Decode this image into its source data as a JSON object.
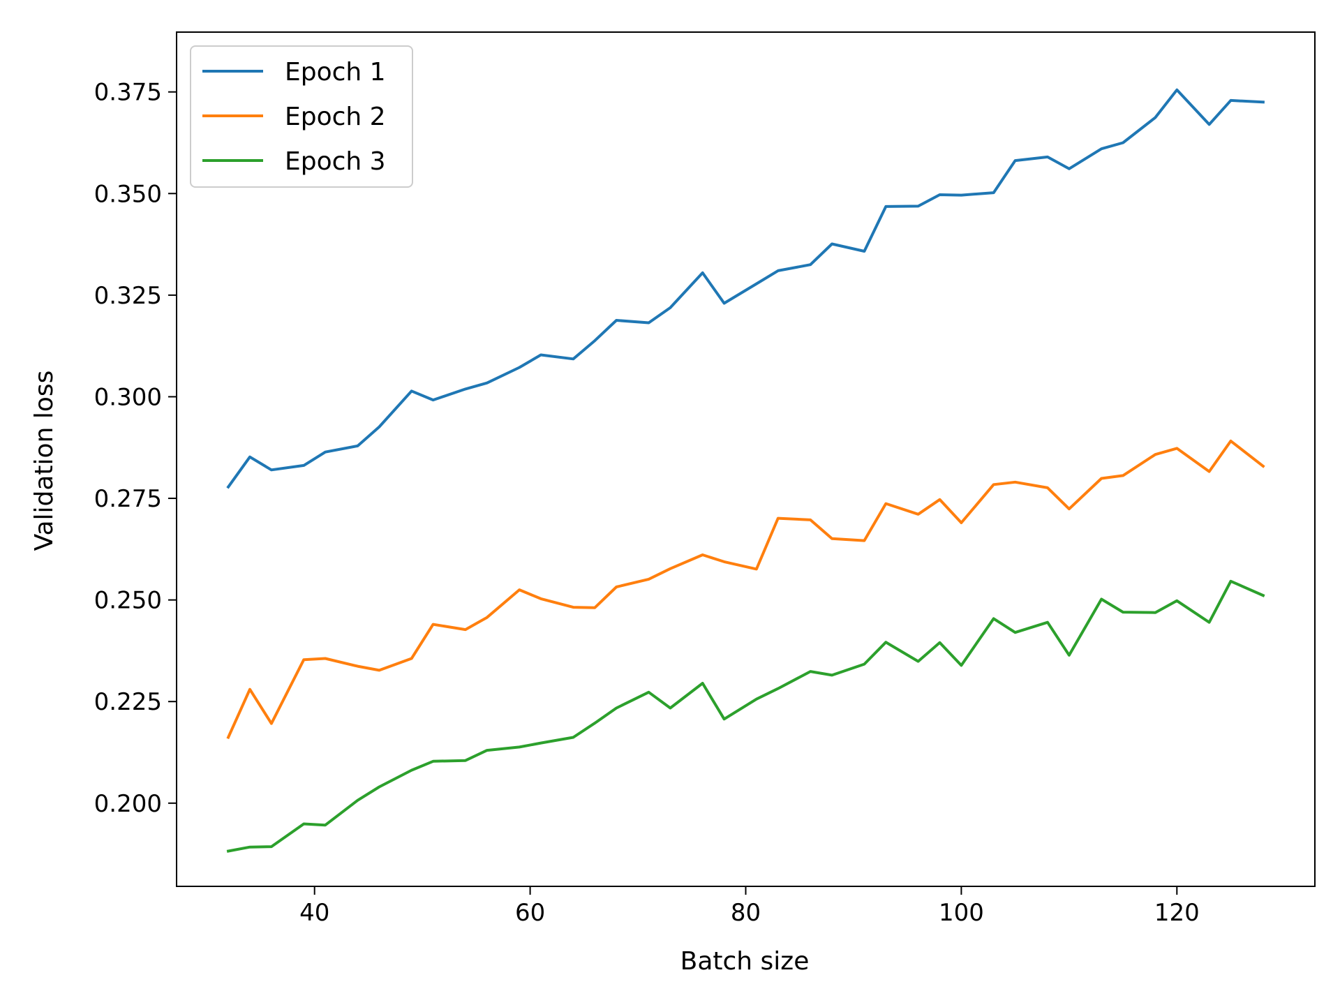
{
  "chart_data": {
    "type": "line",
    "title": "",
    "xlabel": "Batch size",
    "ylabel": "Validation loss",
    "xlim": [
      27.2,
      132.8
    ],
    "ylim": [
      0.17953,
      0.38972
    ],
    "xticks": [
      40,
      60,
      80,
      100,
      120
    ],
    "xtick_labels": [
      "40",
      "60",
      "80",
      "100",
      "120"
    ],
    "yticks": [
      0.2,
      0.225,
      0.25,
      0.275,
      0.3,
      0.325,
      0.35,
      0.375
    ],
    "ytick_labels": [
      "0.200",
      "0.225",
      "0.250",
      "0.275",
      "0.300",
      "0.325",
      "0.350",
      "0.375"
    ],
    "grid": false,
    "legend_position": "top-left",
    "x": [
      32,
      34,
      36,
      39,
      41,
      44,
      46,
      49,
      51,
      54,
      56,
      59,
      61,
      64,
      66,
      68,
      71,
      73,
      76,
      78,
      81,
      83,
      86,
      88,
      91,
      93,
      96,
      98,
      100,
      103,
      105,
      108,
      110,
      113,
      115,
      118,
      120,
      123,
      125,
      128
    ],
    "series": [
      {
        "name": "Epoch 1",
        "color": "#1f77b4",
        "values": [
          0.2778,
          0.2852,
          0.282,
          0.2831,
          0.2864,
          0.2879,
          0.2926,
          0.3014,
          0.2992,
          0.3019,
          0.3034,
          0.3072,
          0.3103,
          0.3093,
          0.3138,
          0.3188,
          0.3182,
          0.3219,
          0.3305,
          0.323,
          0.3278,
          0.331,
          0.3325,
          0.3376,
          0.3358,
          0.3468,
          0.3469,
          0.3497,
          0.3496,
          0.3502,
          0.3581,
          0.359,
          0.3561,
          0.361,
          0.3625,
          0.3687,
          0.3755,
          0.367,
          0.3729,
          0.3725
        ]
      },
      {
        "name": "Epoch 2",
        "color": "#ff7f0e",
        "values": [
          0.2162,
          0.228,
          0.2196,
          0.2353,
          0.2356,
          0.2337,
          0.2327,
          0.2356,
          0.244,
          0.2427,
          0.2457,
          0.2525,
          0.2503,
          0.2482,
          0.2481,
          0.2532,
          0.2551,
          0.2577,
          0.2611,
          0.2594,
          0.2576,
          0.2701,
          0.2697,
          0.2651,
          0.2646,
          0.2737,
          0.2711,
          0.2747,
          0.269,
          0.2784,
          0.279,
          0.2776,
          0.2724,
          0.2799,
          0.2806,
          0.2858,
          0.2873,
          0.2816,
          0.2891,
          0.2829
        ]
      },
      {
        "name": "Epoch 3",
        "color": "#2ca02c",
        "values": [
          0.1882,
          0.1892,
          0.1893,
          0.1949,
          0.1946,
          0.2007,
          0.204,
          0.2081,
          0.2103,
          0.2105,
          0.213,
          0.2138,
          0.2148,
          0.2162,
          0.2197,
          0.2234,
          0.2273,
          0.2234,
          0.2295,
          0.2207,
          0.2256,
          0.2282,
          0.2324,
          0.2315,
          0.2342,
          0.2396,
          0.2349,
          0.2395,
          0.2339,
          0.2454,
          0.242,
          0.2445,
          0.2364,
          0.2502,
          0.247,
          0.2469,
          0.2498,
          0.2445,
          0.2546,
          0.2511
        ]
      }
    ]
  }
}
